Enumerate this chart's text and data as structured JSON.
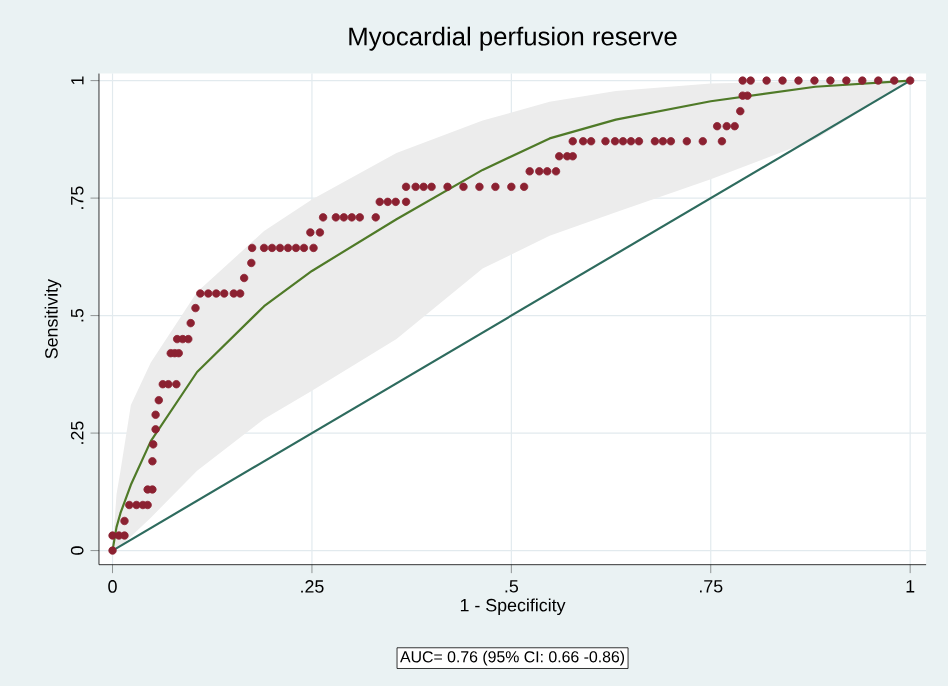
{
  "chart_data": {
    "type": "scatter",
    "title": "Myocardial perfusion reserve",
    "xlabel": "1 - Specificity",
    "ylabel": "Sensitivity",
    "annotations": [
      "AUC= 0.76 (95% CI: 0.66 -0.86)"
    ],
    "xlim": [
      -0.017,
      1.02
    ],
    "ylim": [
      -0.03,
      1.015
    ],
    "xticks": [
      0,
      {
        "value": 0.25,
        "label": ".25"
      },
      {
        "value": 0.5,
        "label": ".5"
      },
      {
        "value": 0.75,
        "label": ".75"
      },
      1
    ],
    "yticks": [
      0,
      {
        "value": 0.25,
        "label": ".25"
      },
      {
        "value": 0.5,
        "label": ".5"
      },
      {
        "value": 0.75,
        "label": ".75"
      },
      1
    ],
    "grid": true,
    "series": [
      {
        "type": "line",
        "color": "#4f7a28",
        "line_style": "solid",
        "marker": "none",
        "x": [
          0,
          0.005,
          0.01,
          0.023,
          0.048,
          0.106,
          0.19,
          0.25,
          0.356,
          0.464,
          0.548,
          0.631,
          0.75,
          0.881,
          1
        ],
        "values": [
          0,
          0.05,
          0.08,
          0.14,
          0.233,
          0.38,
          0.52,
          0.595,
          0.705,
          0.81,
          0.877,
          0.917,
          0.956,
          0.987,
          1
        ],
        "lower": [
          0,
          0.005,
          0.01,
          0.03,
          0.07,
          0.17,
          0.28,
          0.34,
          0.45,
          0.6,
          0.67,
          0.72,
          0.79,
          0.875,
          1
        ],
        "upper": [
          0,
          0.12,
          0.17,
          0.31,
          0.4,
          0.55,
          0.68,
          0.747,
          0.846,
          0.915,
          0.955,
          0.978,
          0.994,
          0.999,
          1
        ]
      },
      {
        "type": "line",
        "color": "#2e6b5e",
        "line_style": "solid",
        "marker": "none",
        "x": [
          0,
          1
        ],
        "values": [
          0,
          1
        ]
      },
      {
        "color": "#8b2131",
        "marker": "circle",
        "x": [
          0,
          0,
          0.008,
          0.015,
          0.015,
          0.021,
          0.03,
          0.038,
          0.044,
          0.044,
          0.05,
          0.05,
          0.051,
          0.054,
          0.054,
          0.058,
          0.063,
          0.07,
          0.08,
          0.073,
          0.078,
          0.083,
          0.081,
          0.088,
          0.095,
          0.098,
          0.104,
          0.11,
          0.12,
          0.13,
          0.14,
          0.152,
          0.16,
          0.165,
          0.174,
          0.175,
          0.19,
          0.2,
          0.21,
          0.22,
          0.23,
          0.24,
          0.252,
          0.248,
          0.26,
          0.264,
          0.28,
          0.29,
          0.3,
          0.31,
          0.33,
          0.335,
          0.345,
          0.355,
          0.368,
          0.368,
          0.38,
          0.39,
          0.4,
          0.42,
          0.44,
          0.46,
          0.48,
          0.5,
          0.516,
          0.523,
          0.535,
          0.545,
          0.556,
          0.56,
          0.57,
          0.577,
          0.577,
          0.59,
          0.6,
          0.618,
          0.63,
          0.64,
          0.65,
          0.66,
          0.68,
          0.69,
          0.7,
          0.72,
          0.74,
          0.764,
          0.758,
          0.77,
          0.78,
          0.787,
          0.79,
          0.796,
          0.79,
          0.8,
          0.82,
          0.84,
          0.86,
          0.88,
          0.9,
          0.92,
          0.94,
          0.96,
          0.98,
          1
        ],
        "values": [
          0,
          0.032,
          0.032,
          0.032,
          0.063,
          0.097,
          0.097,
          0.097,
          0.097,
          0.13,
          0.13,
          0.19,
          0.226,
          0.258,
          0.289,
          0.32,
          0.354,
          0.354,
          0.354,
          0.42,
          0.42,
          0.42,
          0.45,
          0.45,
          0.45,
          0.484,
          0.516,
          0.547,
          0.547,
          0.547,
          0.547,
          0.547,
          0.547,
          0.58,
          0.612,
          0.644,
          0.644,
          0.644,
          0.644,
          0.644,
          0.644,
          0.644,
          0.644,
          0.677,
          0.677,
          0.709,
          0.709,
          0.709,
          0.709,
          0.709,
          0.709,
          0.742,
          0.742,
          0.742,
          0.742,
          0.774,
          0.774,
          0.774,
          0.774,
          0.774,
          0.774,
          0.774,
          0.774,
          0.774,
          0.774,
          0.807,
          0.807,
          0.807,
          0.807,
          0.839,
          0.839,
          0.839,
          0.871,
          0.871,
          0.871,
          0.871,
          0.871,
          0.871,
          0.871,
          0.871,
          0.871,
          0.871,
          0.871,
          0.871,
          0.871,
          0.871,
          0.903,
          0.903,
          0.903,
          0.935,
          0.968,
          0.968,
          1,
          1,
          1,
          1,
          1,
          1,
          1,
          1,
          1,
          1,
          1,
          1
        ]
      }
    ]
  }
}
